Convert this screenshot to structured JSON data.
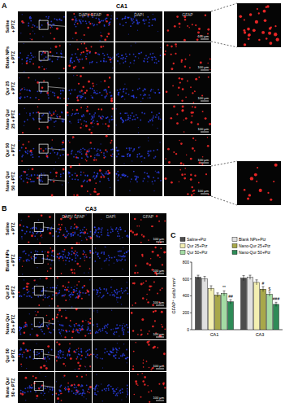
{
  "panels": [
    {
      "label": "A",
      "title": "CA1",
      "column_headers": [
        "DAPI/ GFAP",
        "DAPI",
        "GFAP"
      ],
      "row_labels": [
        [
          "Saline",
          "+ PTZ"
        ],
        [
          "Blank NPs",
          "+ PTZ"
        ],
        [
          "Qur 25",
          "+ PTZ"
        ],
        [
          "Nano Qur",
          "25 + PTZ"
        ],
        [
          "Qur 50",
          "+ PTZ"
        ],
        [
          "Nano Qur",
          "50 + PTZ"
        ]
      ]
    },
    {
      "label": "B",
      "title": "CA3",
      "column_headers": [
        "DAPI/ GFAP",
        "DAPI",
        "GFAP"
      ],
      "row_labels": [
        [
          "Saline",
          "+ PTZ"
        ],
        [
          "Blank NPs",
          "+ PTZ"
        ],
        [
          "Qur 25",
          "+ PTZ"
        ],
        [
          "Nano Qur",
          "25 + PTZ"
        ],
        [
          "Qur 50",
          "+ PTZ"
        ],
        [
          "Nano Qur",
          "50 + PTZ"
        ]
      ]
    }
  ],
  "scale_bar": "100 μm",
  "chart_panel_label": "C",
  "chart_data": {
    "type": "bar",
    "y_label": "GFAP⁺ cells/ mm²",
    "categories": [
      "CA1",
      "CA3"
    ],
    "series": [
      {
        "name": "Saline+Ptz",
        "color": "#4d4d4d",
        "values": [
          620,
          610
        ],
        "errors": [
          25,
          30
        ]
      },
      {
        "name": "Blank NPs+Ptz",
        "color": "#e0e0e0",
        "values": [
          600,
          620
        ],
        "errors": [
          30,
          25
        ]
      },
      {
        "name": "Qur 25+Ptz",
        "color": "#f3efb2",
        "values": [
          490,
          560
        ],
        "errors": [
          30,
          30
        ]
      },
      {
        "name": "Nano-Qur 25+Ptz",
        "color": "#a8a84a",
        "values": [
          410,
          480
        ],
        "errors": [
          25,
          30
        ]
      },
      {
        "name": "Qur 50+Ptz",
        "color": "#a3dba3",
        "values": [
          430,
          420
        ],
        "errors": [
          30,
          25
        ]
      },
      {
        "name": "Nano-Qur 50+Ptz",
        "color": "#2e8b57",
        "values": [
          330,
          300
        ],
        "errors": [
          25,
          25
        ]
      }
    ],
    "annotations": [
      {
        "series": 4,
        "category": 0,
        "text": "**"
      },
      {
        "series": 5,
        "category": 0,
        "text": "##"
      },
      {
        "series": 3,
        "category": 1,
        "text": "#"
      },
      {
        "series": 4,
        "category": 1,
        "text": "$"
      },
      {
        "series": 5,
        "category": 1,
        "text": "###"
      }
    ],
    "ylim": [
      0,
      800
    ],
    "yticks": [
      0,
      200,
      400,
      600,
      800
    ],
    "grid": false,
    "legend": "top"
  }
}
